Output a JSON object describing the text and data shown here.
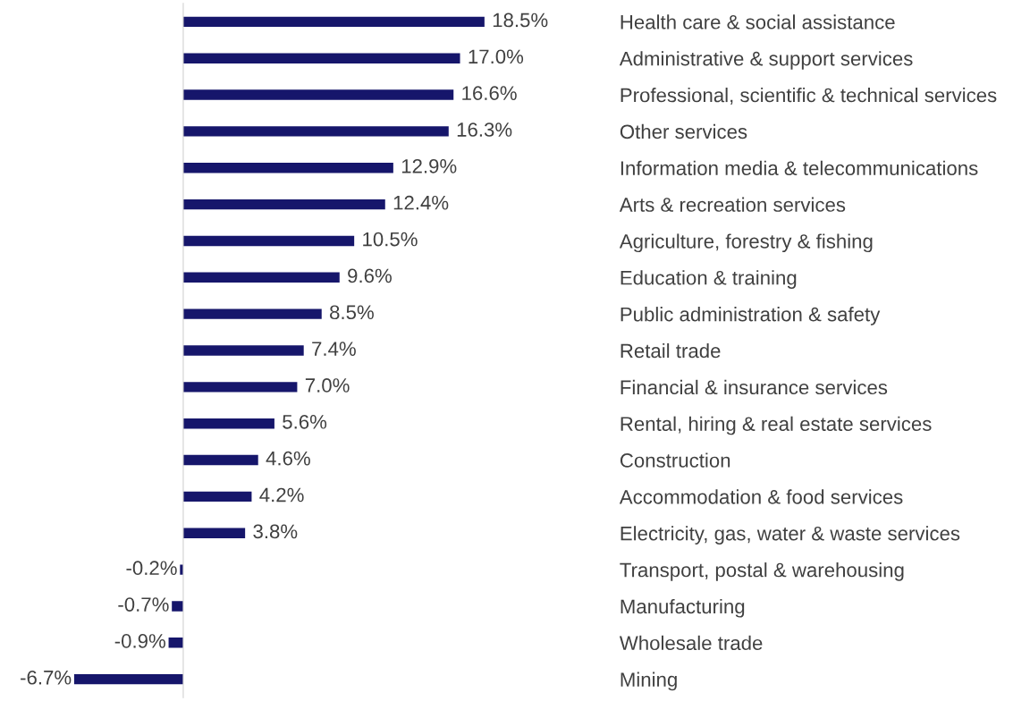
{
  "chart_data": {
    "type": "bar",
    "orientation": "horizontal",
    "categories": [
      "Health care & social assistance",
      "Administrative & support services",
      "Professional, scientific & technical services",
      "Other services",
      "Information media & telecommunications",
      "Arts & recreation services",
      "Agriculture, forestry & fishing",
      "Education & training",
      "Public administration & safety",
      "Retail trade",
      "Financial & insurance services",
      "Rental, hiring & real estate services",
      "Construction",
      "Accommodation & food services",
      "Electricity, gas, water & waste services",
      "Transport, postal & warehousing",
      "Manufacturing",
      "Wholesale trade",
      "Mining"
    ],
    "values": [
      18.5,
      17.0,
      16.6,
      16.3,
      12.9,
      12.4,
      10.5,
      9.6,
      8.5,
      7.4,
      7.0,
      5.6,
      4.6,
      4.2,
      3.8,
      -0.2,
      -0.7,
      -0.9,
      -6.7
    ],
    "value_labels": [
      "18.5%",
      "17.0%",
      "16.6%",
      "16.3%",
      "12.9%",
      "12.4%",
      "10.5%",
      "9.6%",
      "8.5%",
      "7.4%",
      "7.0%",
      "5.6%",
      "4.6%",
      "4.2%",
      "3.8%",
      "-0.2%",
      "-0.7%",
      "-0.9%",
      "-6.7%"
    ],
    "color": "#16166b",
    "grid": false,
    "legend": false,
    "tick_labels": "y"
  }
}
